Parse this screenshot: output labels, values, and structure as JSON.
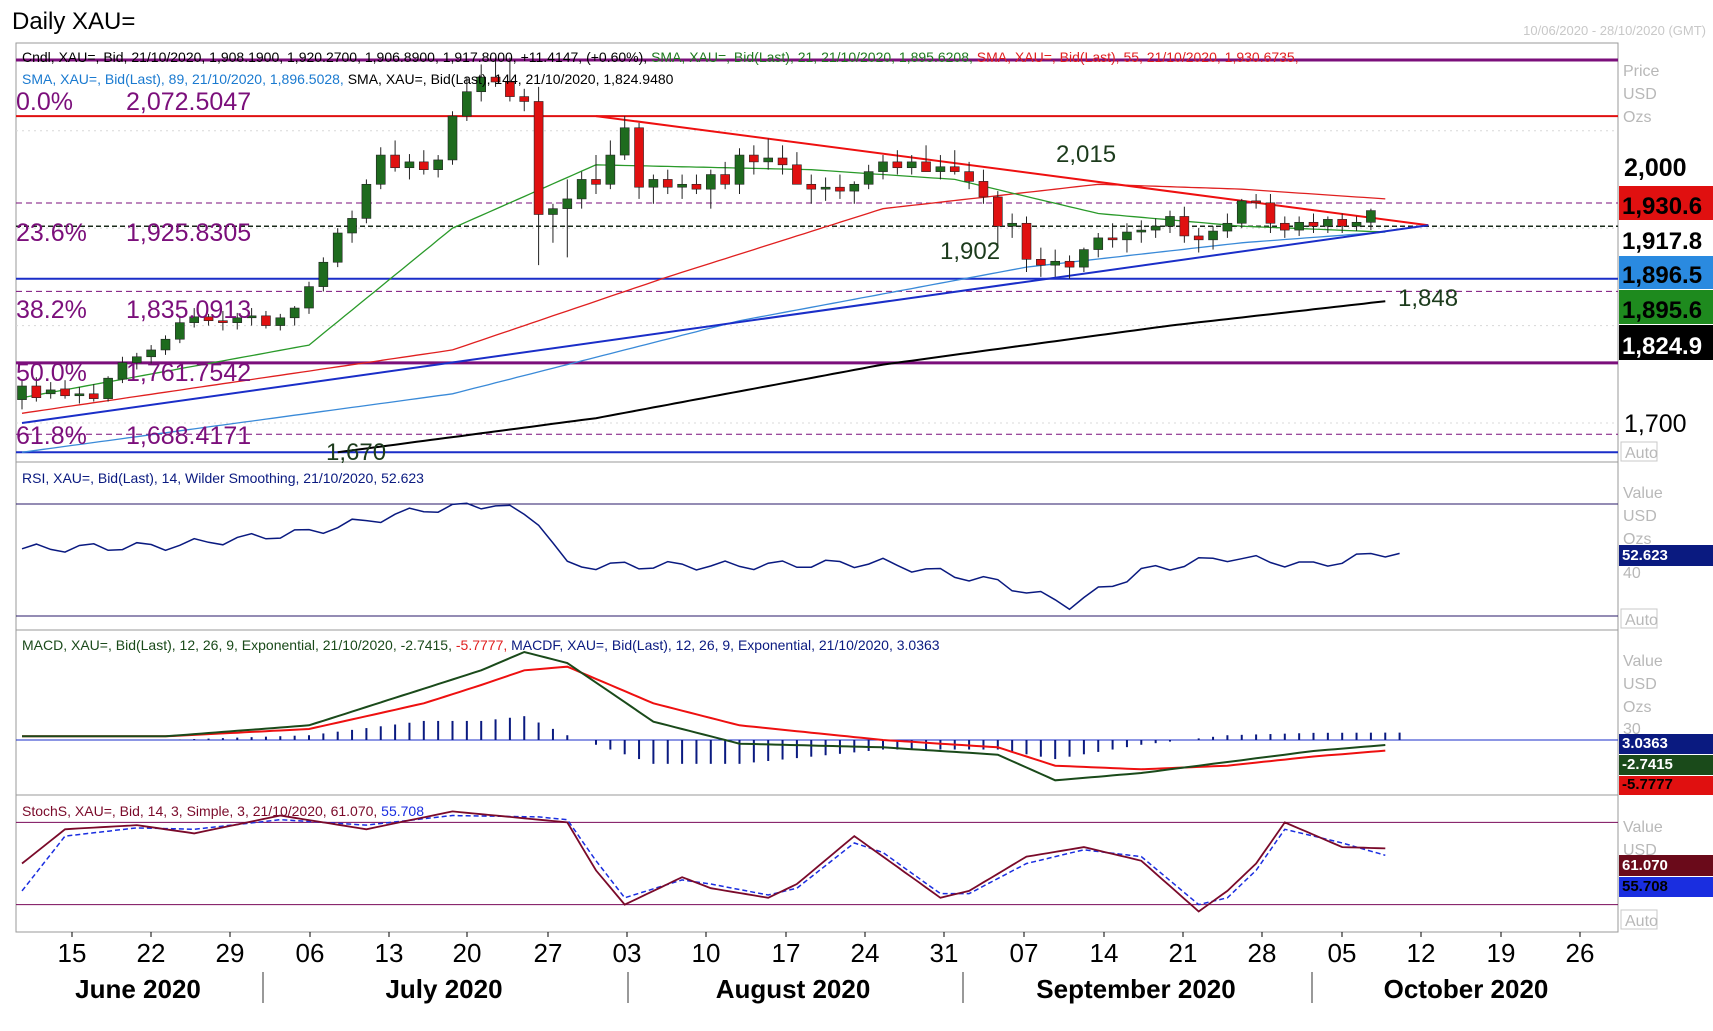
{
  "window": {
    "title": "Daily XAU=",
    "date_range": "10/06/2020 - 28/10/2020 (GMT)"
  },
  "colors": {
    "up_candle": "#1e6b1e",
    "down_candle": "#e01010",
    "sma21": "#2a9a2a",
    "sma55": "#e02020",
    "sma89": "#3a8ad8",
    "sma144": "#000000",
    "fib": "#7b0f7b",
    "trend_red": "#ee1010",
    "trend_blue": "#1a2ec8",
    "rsi": "#0a1a80",
    "macd": "#1a4a1a",
    "macd_signal": "#ee1010",
    "macd_hist": "#0a1a80",
    "stoch_k": "#7a0a2a",
    "stoch_d": "#1a2ee0"
  },
  "legends": {
    "price_line1": [
      {
        "text": "Cndl, XAU=, Bid, 21/10/2020, 1,908.1900, 1,920.2700, 1,906.8900, 1,917.8000, +11.4147, (+0.60%),",
        "color": "#000000"
      },
      {
        "text": " SMA, XAU=, Bid(Last),  21, 21/10/2020, 1,895.6208,",
        "color": "#1f7a1f"
      },
      {
        "text": " SMA, XAU=, Bid(Last),  55, 21/10/2020, 1,930.6735,",
        "color": "#e02020"
      }
    ],
    "price_line2": [
      {
        "text": "SMA, XAU=, Bid(Last),  89, 21/10/2020, 1,896.5028,",
        "color": "#1a7ad0"
      },
      {
        "text": " SMA, XAU=, Bid(Last),  144, 21/10/2020, 1,824.9480",
        "color": "#000000"
      }
    ],
    "rsi": [
      {
        "text": "RSI, XAU=, Bid(Last),  14, Wilder Smoothing, 21/10/2020, 52.623",
        "color": "#0a1a80"
      }
    ],
    "macd": [
      {
        "text": "MACD, XAU=, Bid(Last),  12, 26, 9, Exponential, 21/10/2020, -2.7415,",
        "color": "#1a4a1a"
      },
      {
        "text": " -5.7777,",
        "color": "#e02020"
      },
      {
        "text": " MACDF, XAU=, Bid(Last),  12, 26, 9, Exponential, 21/10/2020, 3.0363",
        "color": "#0a1a80"
      }
    ],
    "stoch": [
      {
        "text": "StochS, XAU=, Bid,  14, 3, Simple, 3, 21/10/2020, 61.070,",
        "color": "#7a0a2a"
      },
      {
        "text": " 55.708",
        "color": "#1a2ee0"
      }
    ]
  },
  "axis_labels": {
    "price": [
      "Price",
      "USD",
      "Ozs"
    ],
    "rsi": [
      "Value",
      "USD",
      "Ozs"
    ],
    "macd": [
      "Value",
      "USD",
      "Ozs"
    ],
    "stoch": [
      "Value",
      "USD"
    ],
    "auto": "Auto"
  },
  "annotations": {
    "fib_0": "0.0%",
    "fib_0_val": "2,072.5047",
    "fib_236": "23.6%",
    "fib_236_val": "1,925.8305",
    "fib_382": "38.2%",
    "fib_382_val": "1,835.0913",
    "fib_50": "50.0%",
    "fib_50_val": "1,761.7542",
    "fib_618": "61.8%",
    "fib_618_val": "1,688.4171",
    "lvl_2015": "2,015",
    "lvl_1902": "1,902",
    "lvl_1848": "1,848",
    "lvl_1670": "1,670"
  },
  "price_axis_ticks": [
    "2,000",
    "1,700"
  ],
  "badges": {
    "price": [
      {
        "text": "1,930.6",
        "bg": "#e01010",
        "fg": "#000000"
      },
      {
        "text": "1,917.8",
        "bg": "#ffffff",
        "fg": "#000000"
      },
      {
        "text": "1,896.5",
        "bg": "#2a8ae0",
        "fg": "#000000"
      },
      {
        "text": "1,895.6",
        "bg": "#1e8a1e",
        "fg": "#000000"
      },
      {
        "text": "1,824.9",
        "bg": "#000000",
        "fg": "#ffffff"
      }
    ],
    "rsi": [
      {
        "text": "52.623",
        "bg": "#0a1a80",
        "fg": "#ffffff"
      }
    ],
    "macd": [
      {
        "text": "3.0363",
        "bg": "#0a1a80",
        "fg": "#ffffff"
      },
      {
        "text": "-2.7415",
        "bg": "#1a4a1a",
        "fg": "#ffffff"
      },
      {
        "text": "-5.7777",
        "bg": "#e01010",
        "fg": "#000000"
      }
    ],
    "stoch": [
      {
        "text": "61.070",
        "bg": "#6a0a1a",
        "fg": "#ffffff"
      },
      {
        "text": "55.708",
        "bg": "#1a2ee0",
        "fg": "#000000"
      }
    ]
  },
  "rsi_ticks": [
    "40"
  ],
  "macd_ticks": [
    "30"
  ],
  "x_axis": {
    "day_ticks": [
      "15",
      "22",
      "29",
      "06",
      "13",
      "20",
      "27",
      "03",
      "10",
      "17",
      "24",
      "31",
      "07",
      "14",
      "21",
      "28",
      "05",
      "12",
      "19",
      "26"
    ],
    "months": [
      "June 2020",
      "July 2020",
      "August 2020",
      "September 2020",
      "October 2020"
    ]
  },
  "chart_data": {
    "type": "candlestick",
    "title": "Daily XAU=",
    "date_range": "10/06/2020 - 28/10/2020 (GMT)",
    "price_ylim": [
      1660,
      2090
    ],
    "candles_ohlc": [
      [
        1724,
        1745,
        1714,
        1738
      ],
      [
        1738,
        1747,
        1722,
        1726
      ],
      [
        1730,
        1742,
        1725,
        1734
      ],
      [
        1735,
        1744,
        1725,
        1728
      ],
      [
        1728,
        1737,
        1720,
        1730
      ],
      [
        1730,
        1740,
        1722,
        1725
      ],
      [
        1725,
        1748,
        1722,
        1746
      ],
      [
        1745,
        1768,
        1741,
        1762
      ],
      [
        1762,
        1772,
        1755,
        1768
      ],
      [
        1768,
        1780,
        1760,
        1775
      ],
      [
        1775,
        1790,
        1770,
        1786
      ],
      [
        1786,
        1810,
        1782,
        1803
      ],
      [
        1803,
        1818,
        1798,
        1809
      ],
      [
        1809,
        1812,
        1800,
        1805
      ],
      [
        1805,
        1815,
        1795,
        1803
      ],
      [
        1803,
        1813,
        1796,
        1808
      ],
      [
        1808,
        1818,
        1800,
        1810
      ],
      [
        1810,
        1815,
        1797,
        1800
      ],
      [
        1800,
        1812,
        1795,
        1808
      ],
      [
        1808,
        1820,
        1800,
        1818
      ],
      [
        1818,
        1845,
        1812,
        1840
      ],
      [
        1840,
        1870,
        1835,
        1865
      ],
      [
        1865,
        1900,
        1860,
        1895
      ],
      [
        1895,
        1918,
        1885,
        1910
      ],
      [
        1910,
        1950,
        1905,
        1945
      ],
      [
        1945,
        1983,
        1940,
        1975
      ],
      [
        1975,
        1990,
        1958,
        1962
      ],
      [
        1962,
        1976,
        1950,
        1968
      ],
      [
        1968,
        1980,
        1955,
        1960
      ],
      [
        1960,
        1975,
        1952,
        1970
      ],
      [
        1970,
        2020,
        1965,
        2015
      ],
      [
        2015,
        2055,
        2010,
        2040
      ],
      [
        2040,
        2068,
        2030,
        2055
      ],
      [
        2055,
        2075,
        2045,
        2050
      ],
      [
        2050,
        2075,
        2030,
        2035
      ],
      [
        2035,
        2043,
        2020,
        2030
      ],
      [
        2030,
        2045,
        1862,
        1914
      ],
      [
        1914,
        1925,
        1885,
        1920
      ],
      [
        1920,
        1950,
        1870,
        1930
      ],
      [
        1930,
        1958,
        1920,
        1950
      ],
      [
        1950,
        1975,
        1935,
        1945
      ],
      [
        1945,
        1990,
        1940,
        1975
      ],
      [
        1975,
        2015,
        1970,
        2003
      ],
      [
        2003,
        2008,
        1930,
        1942
      ],
      [
        1942,
        1955,
        1925,
        1950
      ],
      [
        1950,
        1960,
        1935,
        1942
      ],
      [
        1942,
        1955,
        1930,
        1945
      ],
      [
        1945,
        1955,
        1935,
        1940
      ],
      [
        1940,
        1960,
        1920,
        1955
      ],
      [
        1955,
        1968,
        1940,
        1945
      ],
      [
        1945,
        1982,
        1935,
        1975
      ],
      [
        1975,
        1985,
        1955,
        1968
      ],
      [
        1968,
        1992,
        1960,
        1972
      ],
      [
        1972,
        1985,
        1955,
        1965
      ],
      [
        1965,
        1978,
        1945,
        1945
      ],
      [
        1945,
        1955,
        1925,
        1940
      ],
      [
        1940,
        1952,
        1928,
        1942
      ],
      [
        1942,
        1955,
        1930,
        1938
      ],
      [
        1938,
        1948,
        1925,
        1945
      ],
      [
        1945,
        1965,
        1940,
        1958
      ],
      [
        1958,
        1975,
        1950,
        1968
      ],
      [
        1968,
        1980,
        1955,
        1962
      ],
      [
        1962,
        1975,
        1955,
        1968
      ],
      [
        1968,
        1985,
        1960,
        1958
      ],
      [
        1958,
        1975,
        1950,
        1963
      ],
      [
        1963,
        1980,
        1955,
        1958
      ],
      [
        1958,
        1968,
        1940,
        1948
      ],
      [
        1948,
        1960,
        1925,
        1932
      ],
      [
        1932,
        1938,
        1880,
        1902
      ],
      [
        1902,
        1915,
        1890,
        1905
      ],
      [
        1905,
        1912,
        1855,
        1868
      ],
      [
        1868,
        1880,
        1850,
        1862
      ],
      [
        1862,
        1878,
        1850,
        1866
      ],
      [
        1866,
        1872,
        1848,
        1860
      ],
      [
        1860,
        1880,
        1855,
        1878
      ],
      [
        1878,
        1895,
        1870,
        1890
      ],
      [
        1890,
        1905,
        1880,
        1888
      ],
      [
        1888,
        1905,
        1875,
        1896
      ],
      [
        1896,
        1908,
        1885,
        1898
      ],
      [
        1898,
        1910,
        1890,
        1902
      ],
      [
        1902,
        1918,
        1895,
        1912
      ],
      [
        1912,
        1922,
        1885,
        1892
      ],
      [
        1892,
        1900,
        1875,
        1888
      ],
      [
        1888,
        1902,
        1878,
        1897
      ],
      [
        1897,
        1915,
        1890,
        1905
      ],
      [
        1905,
        1930,
        1900,
        1928
      ],
      [
        1928,
        1935,
        1920,
        1926
      ],
      [
        1926,
        1935,
        1895,
        1905
      ],
      [
        1905,
        1912,
        1890,
        1898
      ],
      [
        1898,
        1912,
        1892,
        1906
      ],
      [
        1906,
        1915,
        1895,
        1902
      ],
      [
        1902,
        1912,
        1895,
        1909
      ],
      [
        1909,
        1915,
        1895,
        1902
      ],
      [
        1902,
        1912,
        1897,
        1906
      ],
      [
        1906,
        1920,
        1898,
        1918
      ]
    ],
    "sma21": {
      "x": [
        0,
        20,
        30,
        40,
        55,
        65,
        75,
        85,
        95
      ],
      "y": [
        1726,
        1780,
        1900,
        1965,
        1960,
        1950,
        1915,
        1902,
        1896
      ]
    },
    "sma55": {
      "x": [
        0,
        30,
        45,
        60,
        75,
        85,
        95
      ],
      "y": [
        1710,
        1775,
        1850,
        1920,
        1945,
        1940,
        1930
      ]
    },
    "sma89": {
      "x": [
        0,
        30,
        50,
        70,
        85,
        95
      ],
      "y": [
        1670,
        1730,
        1805,
        1860,
        1885,
        1896
      ]
    },
    "sma144": {
      "x": [
        22,
        40,
        60,
        80,
        95
      ],
      "y": [
        1670,
        1705,
        1760,
        1800,
        1825
      ]
    },
    "trendlines": [
      {
        "name": "2,015",
        "color": "red",
        "x": [
          40,
          98
        ],
        "y": [
          2015,
          1903
        ]
      },
      {
        "name": "1,848",
        "color": "blue",
        "x": [
          0,
          98
        ],
        "y": [
          1700,
          1903
        ]
      }
    ],
    "horizontal_levels": [
      {
        "label": "0.0%",
        "value": 2072.5047
      },
      {
        "label": "23.6%",
        "value": 1925.8305
      },
      {
        "label": "38.2%",
        "value": 1835.0913
      },
      {
        "label": "50.0%",
        "value": 1761.7542
      },
      {
        "label": "61.8%",
        "value": 1688.4171
      },
      {
        "label": "2,015",
        "value": 2015
      },
      {
        "label": "1,902",
        "value": 1902
      },
      {
        "label": "1,848",
        "value": 1848
      },
      {
        "label": "1,670",
        "value": 1670
      }
    ],
    "rsi": {
      "period": 14,
      "last": 52.623,
      "ylim": [
        25,
        85
      ],
      "levels": [
        30,
        70
      ],
      "x": [
        0,
        10,
        20,
        28,
        33,
        36,
        38,
        44,
        50,
        60,
        68,
        73,
        78,
        84,
        90,
        95
      ],
      "y": [
        54,
        55,
        60,
        68,
        70,
        64,
        48,
        48,
        48,
        49,
        42,
        34,
        46,
        51,
        48,
        52.6
      ]
    },
    "macd": {
      "params": [
        12,
        26,
        9
      ],
      "macd_last": -2.7415,
      "signal_last": -5.7777,
      "hist_last": 3.0363,
      "ylim": [
        -30,
        60
      ],
      "x": [
        0,
        10,
        20,
        28,
        32,
        35,
        38,
        44,
        50,
        60,
        68,
        72,
        78,
        84,
        90,
        95
      ],
      "macd": [
        2,
        2,
        8,
        28,
        38,
        48,
        42,
        10,
        -2,
        -4,
        -8,
        -22,
        -18,
        -12,
        -6,
        -2.7
      ],
      "signal": [
        2,
        2,
        6,
        20,
        30,
        38,
        40,
        20,
        8,
        0,
        -4,
        -14,
        -16,
        -14,
        -9,
        -5.8
      ]
    },
    "stoch": {
      "params": [
        14,
        3,
        3
      ],
      "k_last": 61.07,
      "d_last": 55.708,
      "ylim": [
        0,
        100
      ],
      "levels": [
        20,
        80
      ],
      "x": [
        0,
        3,
        8,
        12,
        18,
        24,
        30,
        36,
        38,
        40,
        42,
        46,
        48,
        52,
        54,
        58,
        60,
        64,
        66,
        70,
        74,
        78,
        82,
        84,
        86,
        88,
        92,
        95
      ],
      "k": [
        50,
        75,
        78,
        72,
        85,
        75,
        88,
        82,
        80,
        45,
        20,
        40,
        32,
        25,
        35,
        70,
        55,
        25,
        30,
        55,
        62,
        52,
        15,
        30,
        50,
        80,
        62,
        61
      ],
      "d": [
        30,
        70,
        76,
        75,
        82,
        78,
        85,
        84,
        82,
        52,
        25,
        38,
        35,
        27,
        32,
        65,
        58,
        28,
        28,
        50,
        60,
        55,
        20,
        25,
        45,
        75,
        65,
        56
      ]
    }
  }
}
